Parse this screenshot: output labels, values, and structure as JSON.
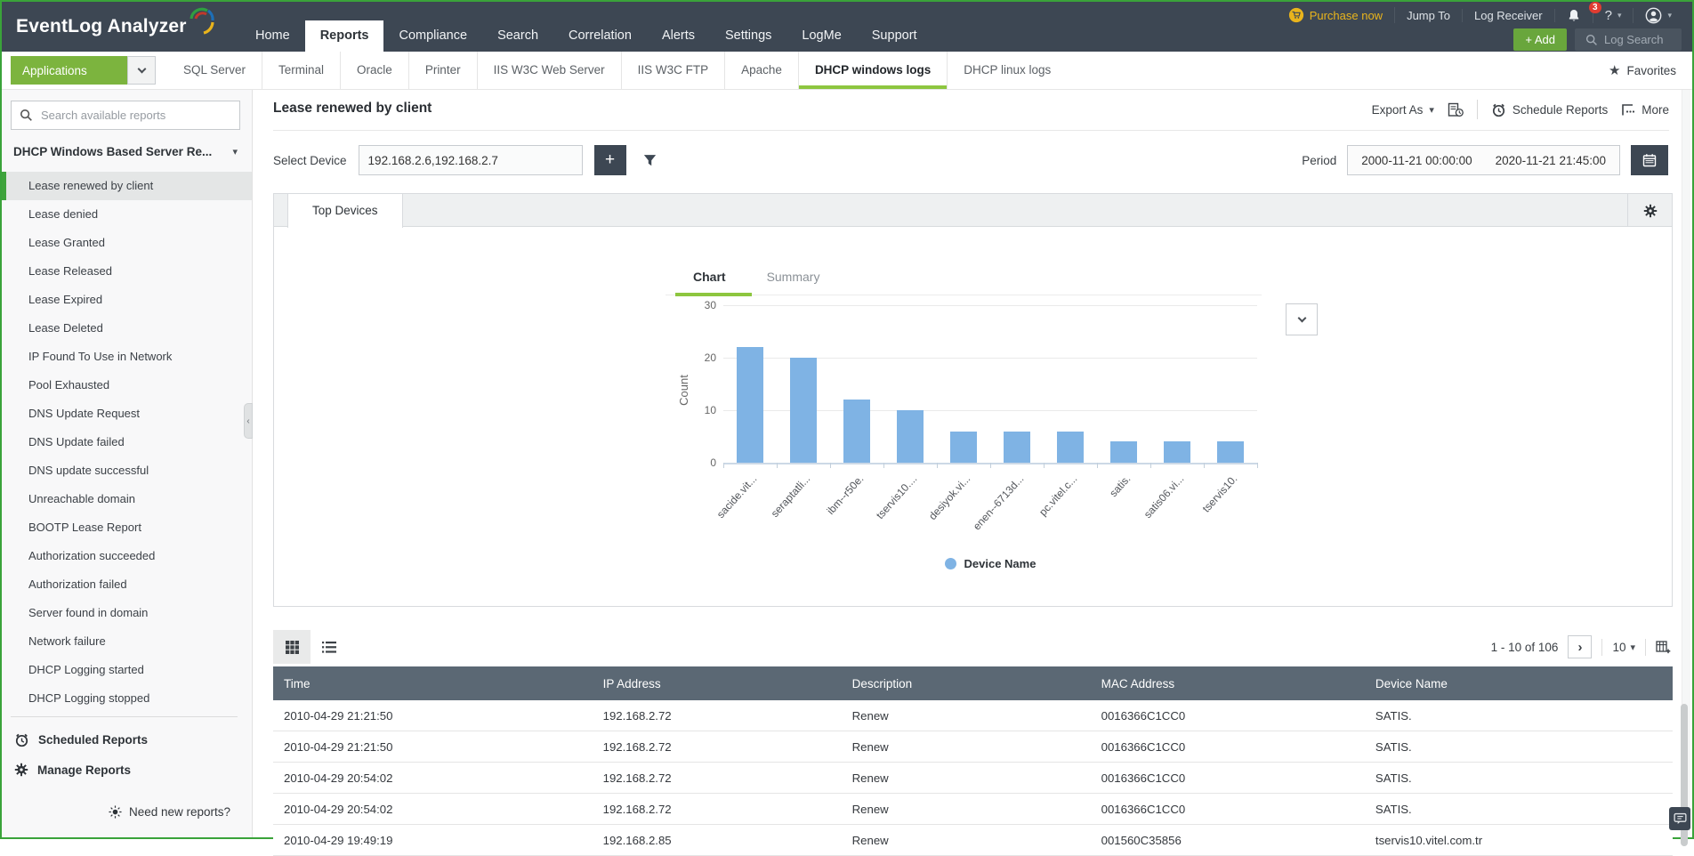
{
  "topbar": {
    "logo": "EventLog Analyzer",
    "nav": [
      "Home",
      "Reports",
      "Compliance",
      "Search",
      "Correlation",
      "Alerts",
      "Settings",
      "LogMe",
      "Support"
    ],
    "active_nav": "Reports",
    "purchase_now": "Purchase now",
    "jump_to": "Jump To",
    "log_receiver": "Log Receiver",
    "notification_count": "3",
    "help_label": "?",
    "add_label": "+ Add",
    "log_search_label": "Log Search"
  },
  "tabsbar": {
    "applications_label": "Applications",
    "categories": [
      "SQL Server",
      "Terminal",
      "Oracle",
      "Printer",
      "IIS W3C Web Server",
      "IIS W3C FTP",
      "Apache",
      "DHCP windows logs",
      "DHCP linux logs"
    ],
    "active_category": "DHCP windows logs",
    "favorites_label": "Favorites"
  },
  "sidebar": {
    "search_placeholder": "Search available reports",
    "group_title": "DHCP Windows Based Server Re...",
    "selected_item": "Lease renewed by client",
    "items": [
      "Lease renewed by client",
      "Lease denied",
      "Lease Granted",
      "Lease Released",
      "Lease Expired",
      "Lease Deleted",
      "IP Found To Use in Network",
      "Pool Exhausted",
      "DNS Update Request",
      "DNS Update failed",
      "DNS update successful",
      "Unreachable domain",
      "BOOTP Lease Report",
      "Authorization succeeded",
      "Authorization failed",
      "Server found in domain",
      "Network failure",
      "DHCP Logging started",
      "DHCP Logging stopped"
    ],
    "scheduled_reports": "Scheduled Reports",
    "manage_reports": "Manage Reports",
    "need_new_reports": "Need new reports?"
  },
  "report": {
    "title": "Lease renewed by client",
    "export_as": "Export As",
    "schedule_reports": "Schedule Reports",
    "more": "More",
    "select_device_label": "Select Device",
    "select_device_value": "192.168.2.6,192.168.2.7",
    "period_label": "Period",
    "period_from": "2000-11-21 00:00:00",
    "period_to": "2020-11-21 21:45:00",
    "panel_tab": "Top Devices",
    "chart_tab": "Chart",
    "summary_tab": "Summary"
  },
  "chart_data": {
    "type": "bar",
    "categories": [
      "sacide.vit...",
      "seraptatli...",
      "ibm--r50e.",
      "tservis10....",
      "desiyok.vi...",
      "enen--6713d...",
      "pc.vitel.c...",
      "satis.",
      "satis06.vi...",
      "tservis10."
    ],
    "values": [
      22,
      20,
      12,
      10,
      6,
      6,
      6,
      4,
      4,
      4
    ],
    "ylabel": "Count",
    "yticks": [
      0,
      10,
      20,
      30
    ],
    "ylim": [
      0,
      30
    ],
    "grid": true,
    "legend": [
      "Device Name"
    ],
    "legend_position": "bottom",
    "bar_color": "#7fb3e4"
  },
  "table": {
    "pagination_range": "1 - 10 of 106",
    "page_size": "10",
    "columns": [
      "Time",
      "IP Address",
      "Description",
      "MAC Address",
      "Device Name"
    ],
    "rows": [
      [
        "2010-04-29 21:21:50",
        "192.168.2.72",
        "Renew",
        "0016366C1CC0",
        "SATIS."
      ],
      [
        "2010-04-29 21:21:50",
        "192.168.2.72",
        "Renew",
        "0016366C1CC0",
        "SATIS."
      ],
      [
        "2010-04-29 20:54:02",
        "192.168.2.72",
        "Renew",
        "0016366C1CC0",
        "SATIS."
      ],
      [
        "2010-04-29 20:54:02",
        "192.168.2.72",
        "Renew",
        "0016366C1CC0",
        "SATIS."
      ],
      [
        "2010-04-29 19:49:19",
        "192.168.2.85",
        "Renew",
        "001560C35856",
        "tservis10.vitel.com.tr"
      ]
    ]
  },
  "icons": {
    "caret_down": "▾",
    "next_arrow": "›",
    "collapse_left": "‹",
    "star": "★",
    "plus": "+"
  },
  "colors": {
    "topbar": "#3d4753",
    "accent_green": "#7cb43e",
    "underline_green": "#8dc63f",
    "bar_blue": "#7fb3e4",
    "table_header": "#5b6874",
    "badge_red": "#e03c31",
    "purchase_yellow": "#e9b41c"
  }
}
